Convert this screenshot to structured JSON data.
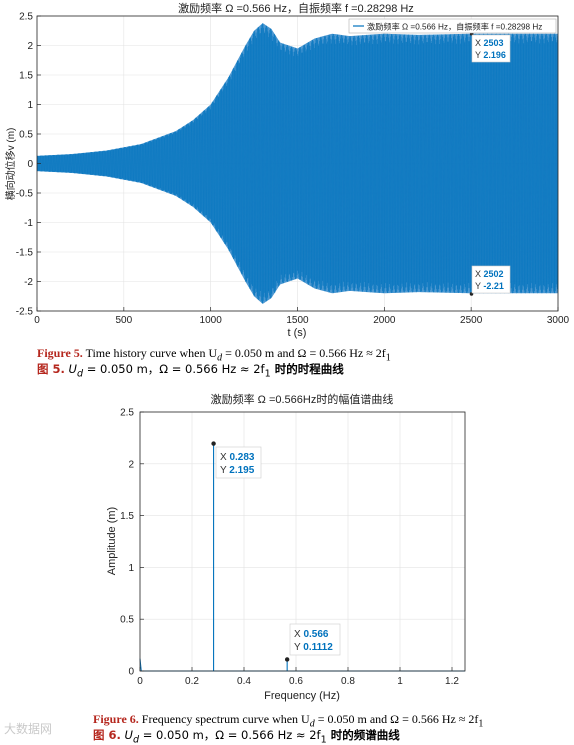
{
  "chart_data": [
    {
      "type": "line",
      "title": "激励频率 Ω =0.566 Hz，自振频率 f =0.28298 Hz",
      "xlabel": "t (s)",
      "ylabel": "横向动位移v (m)",
      "xlim": [
        0,
        3000
      ],
      "ylim": [
        -2.5,
        2.5
      ],
      "xticks": [
        "0",
        "500",
        "1000",
        "1500",
        "2000",
        "2500",
        "3000"
      ],
      "yticks": [
        "2.5",
        "2",
        "1.5",
        "1",
        "0.5",
        "0",
        "-0.5",
        "-1",
        "-1.5",
        "-2",
        "-2.5"
      ],
      "grid": true,
      "legend": {
        "position": "top-right",
        "entries": [
          "激励频率 Ω =0.566 Hz，自振频率 f =0.28298 Hz"
        ]
      },
      "series": [
        {
          "name": "激励频率 Ω =0.566 Hz，自振频率 f =0.28298 Hz",
          "color": "#0072bd",
          "envelope_t": [
            0,
            200,
            400,
            600,
            800,
            900,
            1000,
            1100,
            1200,
            1250,
            1300,
            1350,
            1400,
            1500,
            1600,
            1700,
            1800,
            2000,
            2200,
            2500,
            3000
          ],
          "envelope_amp": [
            0.13,
            0.16,
            0.22,
            0.33,
            0.55,
            0.74,
            1.0,
            1.45,
            2.0,
            2.25,
            2.38,
            2.28,
            2.05,
            1.95,
            2.12,
            2.2,
            2.16,
            2.2,
            2.18,
            2.2,
            2.2
          ]
        }
      ],
      "datatips": [
        {
          "x_label": "X",
          "x": "2503",
          "y_label": "Y",
          "y": "2.196"
        },
        {
          "x_label": "X",
          "x": "2502",
          "y_label": "Y",
          "y": "-2.21"
        }
      ]
    },
    {
      "type": "line",
      "title": "激励频率 Ω =0.566Hz时的幅值谱曲线",
      "xlabel": "Frequency (Hz)",
      "ylabel": "Amplitude (m)",
      "xlim": [
        0,
        1.25
      ],
      "ylim": [
        0,
        2.5
      ],
      "xticks": [
        "0",
        "0.2",
        "0.4",
        "0.6",
        "0.8",
        "1",
        "1.2"
      ],
      "yticks": [
        "2.5",
        "2",
        "1.5",
        "1",
        "0.5",
        "0"
      ],
      "grid": true,
      "series": [
        {
          "color": "#0072bd",
          "x": [
            0,
            0.005,
            0.283,
            0.566,
            1.25
          ],
          "y": [
            0.12,
            0.0,
            2.195,
            0.1112,
            0.0
          ]
        }
      ],
      "datatips": [
        {
          "x_label": "X",
          "x": "0.283",
          "y_label": "Y",
          "y": "2.195"
        },
        {
          "x_label": "X",
          "x": "0.566",
          "y_label": "Y",
          "y": "0.1112"
        }
      ]
    }
  ],
  "captions": {
    "fig5_en_label": "Figure 5.",
    "fig5_en_text": " Time history curve when U",
    "fig5_en_sub": "d",
    "fig5_en_rest": " = 0.050 m and Ω = 0.566 Hz ≈ 2f",
    "fig5_en_sub2": "1",
    "fig5_zh_label": "图 5.",
    "fig5_zh_text": " U",
    "fig5_zh_sub": "d",
    "fig5_zh_rest": " = 0.050 m，Ω = 0.566 Hz ≈ 2f",
    "fig5_zh_sub2": "1",
    "fig5_zh_end": " 时的时程曲线",
    "fig6_en_label": "Figure 6.",
    "fig6_en_text": " Frequency spectrum curve when U",
    "fig6_en_sub": "d",
    "fig6_en_rest": " = 0.050 m and Ω = 0.566 Hz ≈ 2f",
    "fig6_en_sub2": "1",
    "fig6_zh_label": "图 6.",
    "fig6_zh_text": " U",
    "fig6_zh_sub": "d",
    "fig6_zh_rest": " = 0.050 m，Ω = 0.566 Hz ≈ 2f",
    "fig6_zh_sub2": "1",
    "fig6_zh_end": " 时的频谱曲线"
  },
  "watermark": "大数据网"
}
